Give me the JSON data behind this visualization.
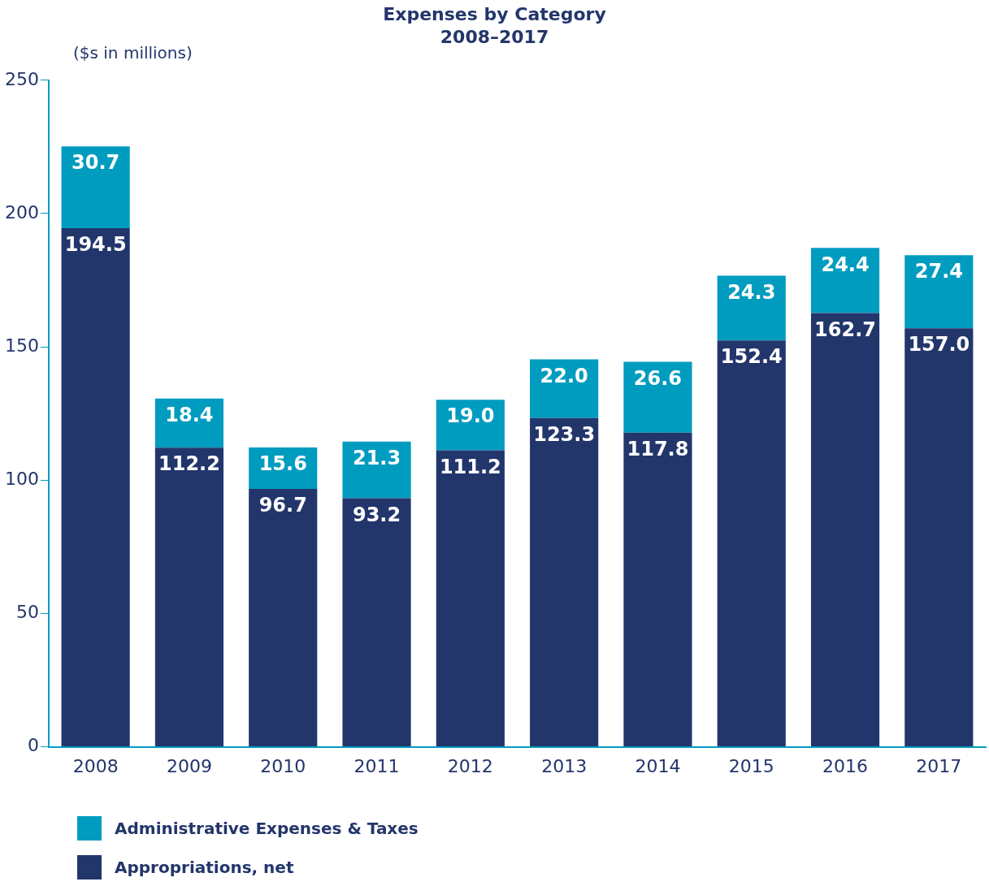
{
  "chart_data": {
    "type": "bar",
    "title": "Expenses by Category",
    "subtitle": "2008–2017",
    "ylabel": "($s in millions)",
    "categories": [
      "2008",
      "2009",
      "2010",
      "2011",
      "2012",
      "2013",
      "2014",
      "2015",
      "2016",
      "2017"
    ],
    "series": [
      {
        "name": "Appropriations, net",
        "color": "#22366c",
        "values": [
          194.5,
          112.2,
          96.7,
          93.2,
          111.2,
          123.3,
          117.8,
          152.4,
          162.7,
          157.0
        ],
        "value_labels": [
          "194.5",
          "112.2",
          "96.7",
          "93.2",
          "111.2",
          "123.3",
          "117.8",
          "152.4",
          "162.7",
          "157.0"
        ]
      },
      {
        "name": "Administrative Expenses & Taxes",
        "color": "#009cbf",
        "values": [
          30.7,
          18.4,
          15.6,
          21.3,
          19.0,
          22.0,
          26.6,
          24.3,
          24.4,
          27.4
        ],
        "value_labels": [
          "30.7",
          "18.4",
          "15.6",
          "21.3",
          "19.0",
          "22.0",
          "26.6",
          "24.3",
          "24.4",
          "27.4"
        ]
      }
    ],
    "stacked": true,
    "ylim": [
      0,
      250
    ],
    "yticks": [
      0,
      50,
      100,
      150,
      200,
      250
    ],
    "grid": false,
    "legend": "bottom left"
  }
}
